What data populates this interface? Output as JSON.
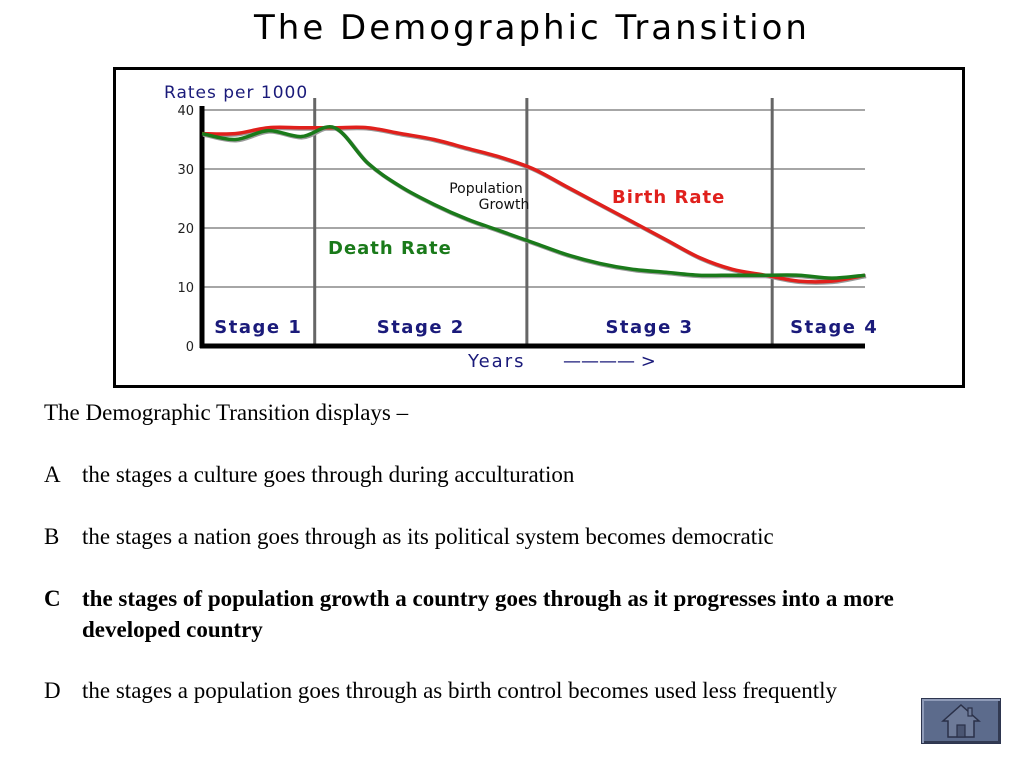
{
  "slide": {
    "title": "The Demographic Transition"
  },
  "question": {
    "stem": "The Demographic Transition displays –",
    "options": [
      {
        "letter": "A",
        "text": "the stages a culture goes through during acculturation",
        "correct": false
      },
      {
        "letter": "B",
        "text": "the stages a nation goes through as its political system becomes democratic",
        "correct": false
      },
      {
        "letter": "C",
        "text": "the stages of population growth a country goes through as it progresses into a more developed country",
        "correct": true
      },
      {
        "letter": "D",
        "text": "the stages a population goes through as birth control becomes used less frequently",
        "correct": false
      }
    ]
  },
  "home_button": {
    "icon": "home-icon"
  },
  "chart_data": {
    "type": "line",
    "title": "",
    "ylabel": "Rates per 1000",
    "xlabel": "Years",
    "xlabel_arrow": "———— >",
    "ylim": [
      0,
      40
    ],
    "yticks": [
      0,
      10,
      20,
      30,
      40
    ],
    "grid": true,
    "x": [
      0,
      5,
      10,
      15,
      20,
      25,
      30,
      35,
      40,
      45,
      50,
      55,
      60,
      65,
      70,
      75,
      80,
      85,
      90,
      95,
      100
    ],
    "stages": [
      "Stage 1",
      "Stage 2",
      "Stage 3",
      "Stage 4"
    ],
    "stage_boundaries": [
      17,
      49,
      86
    ],
    "annotation": "Population Growth",
    "series": [
      {
        "name": "Birth Rate",
        "color": "#e0201c",
        "values": [
          36,
          36,
          37,
          37,
          37,
          37,
          36,
          35,
          33.5,
          32,
          30,
          27,
          24,
          21,
          18,
          15,
          13,
          12,
          11,
          11,
          12
        ]
      },
      {
        "name": "Death Rate",
        "color": "#1a7a1a",
        "values": [
          36,
          35,
          36.5,
          35.5,
          37,
          31,
          27,
          24,
          21.5,
          19.5,
          17.5,
          15.5,
          14,
          13,
          12.5,
          12,
          12,
          12,
          12,
          11.5,
          12
        ]
      }
    ],
    "colors": {
      "axis": "#000000",
      "grid": "#888888",
      "axis_label": "#1a1a7a",
      "stage_label": "#1a1a7a"
    }
  }
}
